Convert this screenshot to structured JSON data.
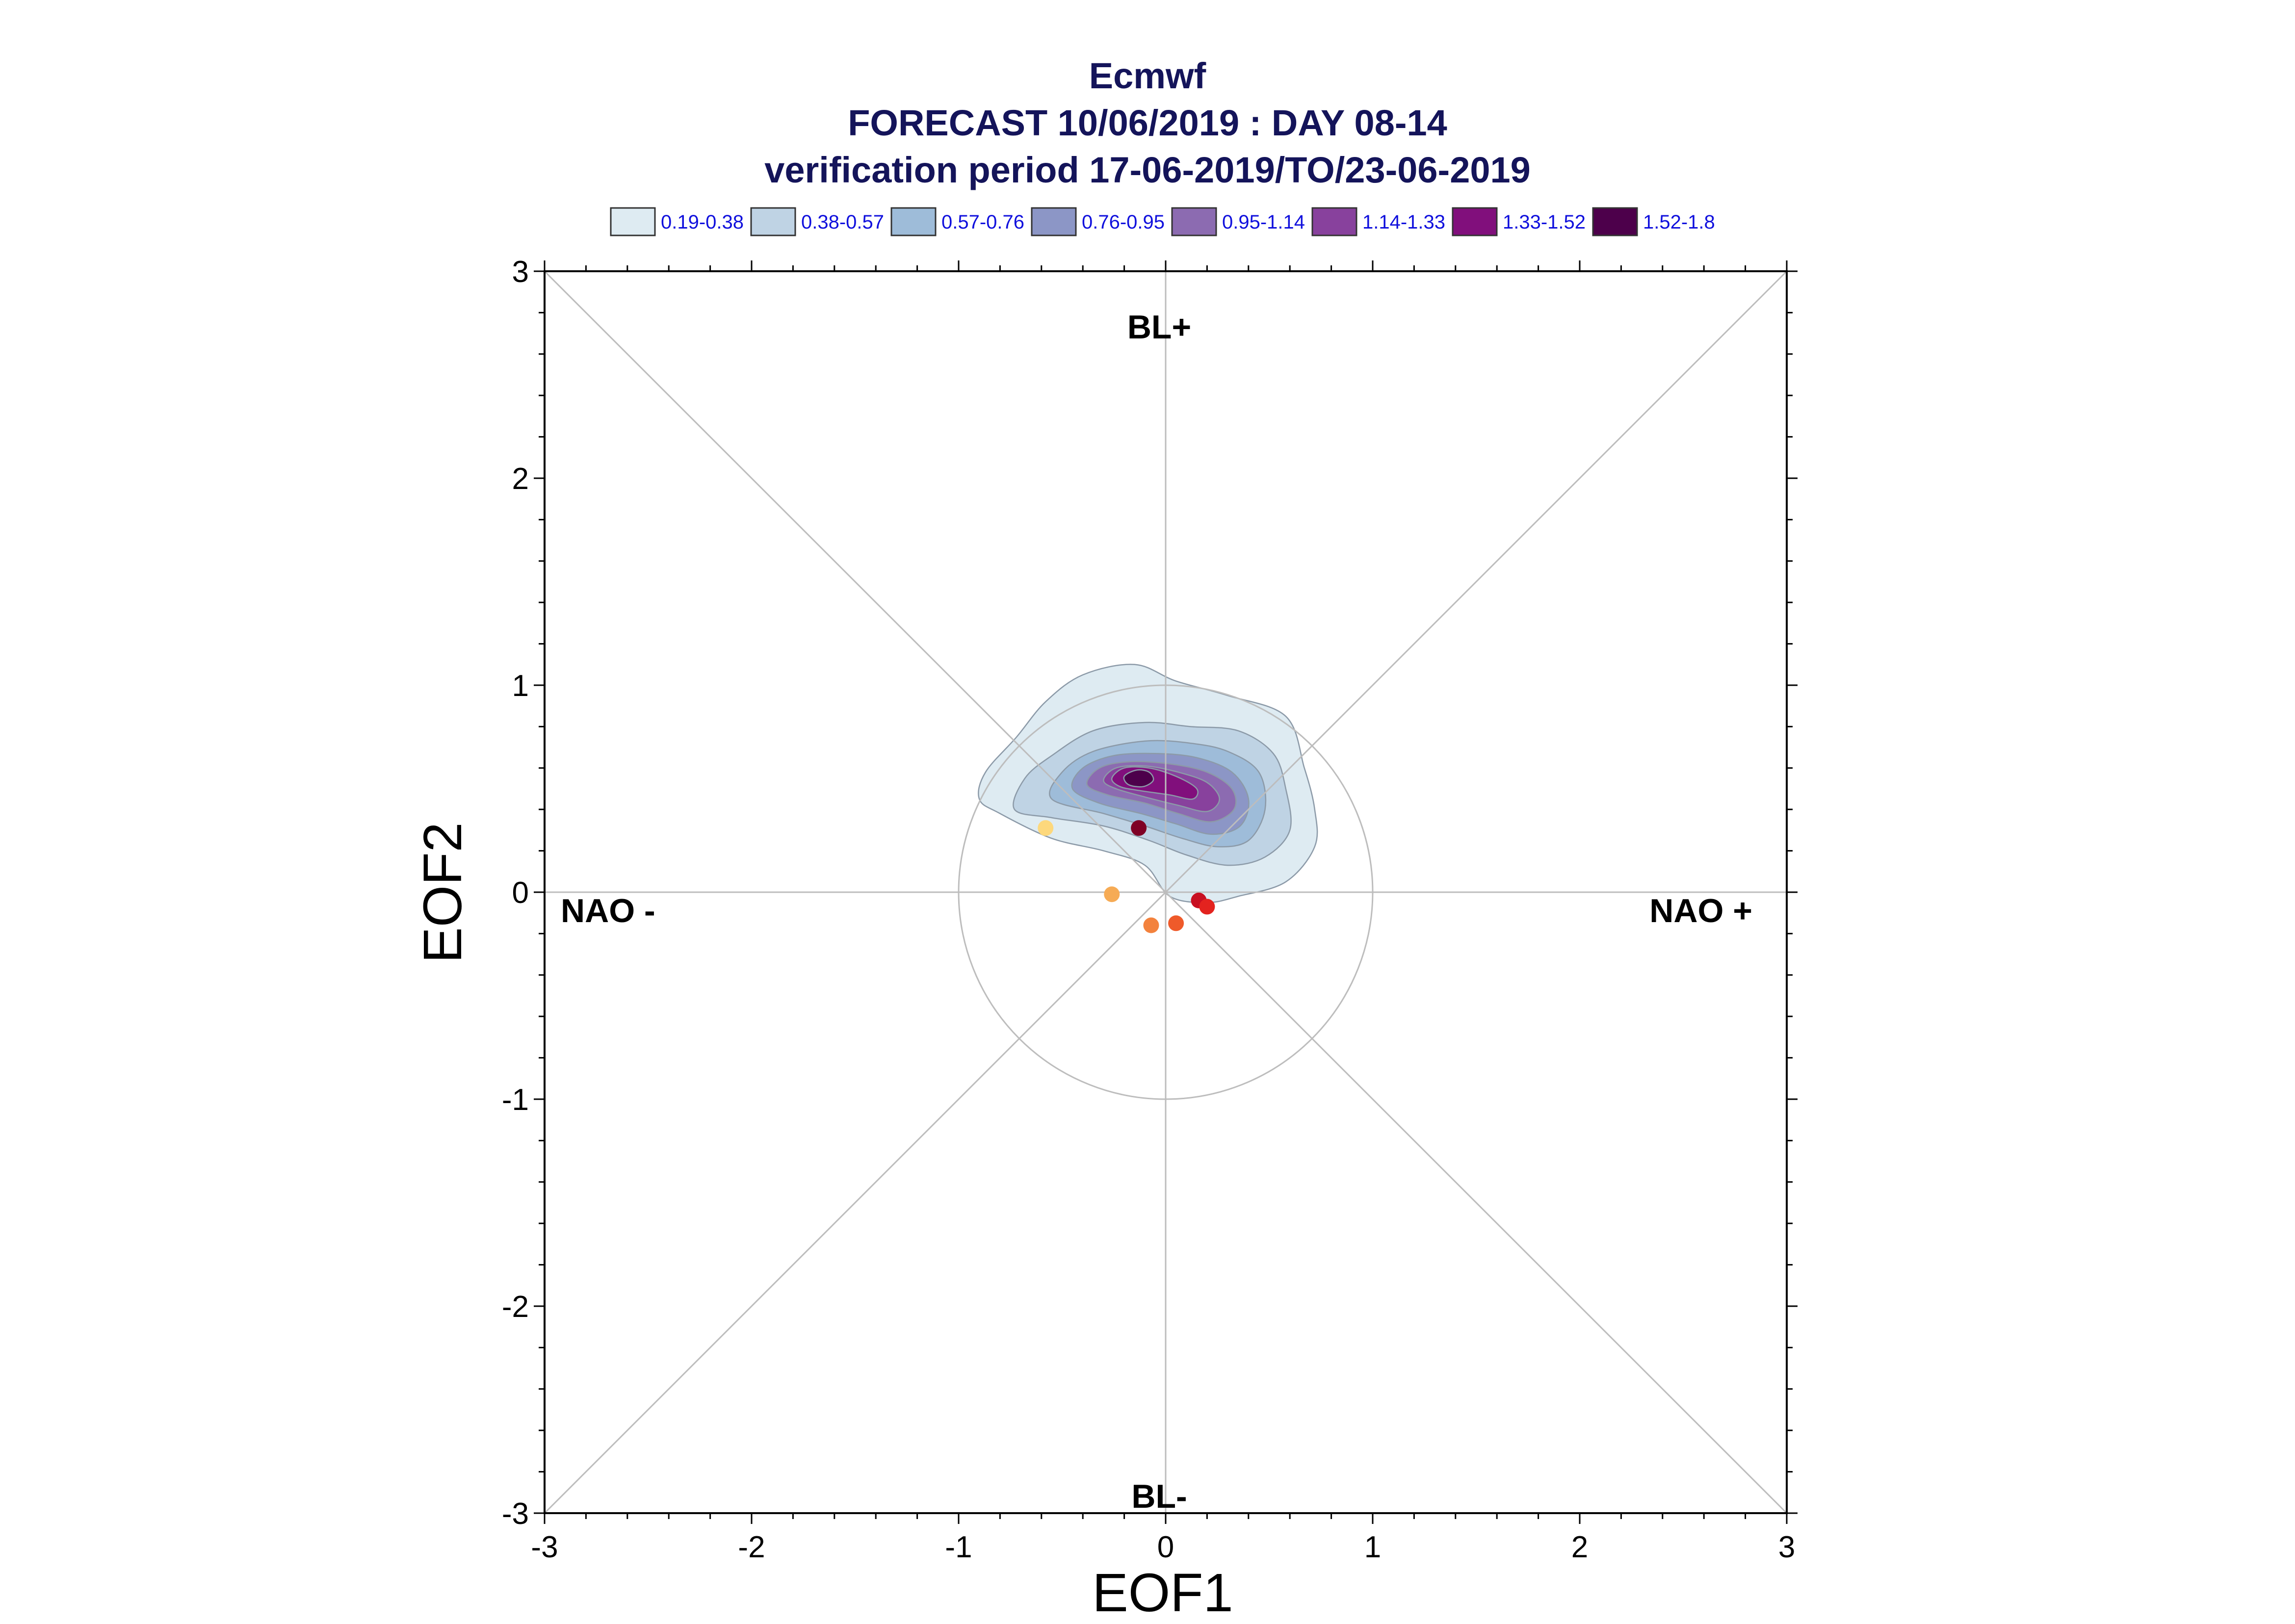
{
  "title_lines": [
    "Ecmwf",
    "FORECAST 10/06/2019 : DAY 08-14",
    "verification period 17-06-2019/TO/23-06-2019"
  ],
  "chart_data": {
    "type": "scatter",
    "title": "Ecmwf FORECAST 10/06/2019 : DAY 08-14 verification period 17-06-2019/TO/23-06-2019",
    "xlabel": "EOF1",
    "ylabel": "EOF2",
    "xlim": [
      -3,
      3
    ],
    "ylim": [
      -3,
      3
    ],
    "x_ticks": [
      "-3",
      "-2",
      "-1",
      "0",
      "1",
      "2",
      "3"
    ],
    "y_ticks": [
      "-3",
      "-2",
      "-1",
      "0",
      "1",
      "2",
      "3"
    ],
    "grid": false,
    "reference_circle_radius": 1,
    "diagonal_lines": true,
    "region_labels": {
      "top": "BL+",
      "bottom": "BL-",
      "left": "NAO -",
      "right": "NAO +"
    },
    "legend": {
      "placement": "top",
      "entries": [
        {
          "label": "0.19-0.38",
          "color": "#deebf2"
        },
        {
          "label": "0.38-0.57",
          "color": "#bfd3e4"
        },
        {
          "label": "0.57-0.76",
          "color": "#9ebcd9"
        },
        {
          "label": "0.76-0.95",
          "color": "#8c96c6"
        },
        {
          "label": "0.95-1.14",
          "color": "#8c6bb1"
        },
        {
          "label": "1.14-1.33",
          "color": "#88419d"
        },
        {
          "label": "1.33-1.52",
          "color": "#810f7c"
        },
        {
          "label": "1.52-1.8",
          "color": "#4d004b"
        }
      ]
    },
    "density_contours": [
      {
        "level": "0.19-0.38",
        "color": "#deebf2",
        "points": [
          [
            -0.8,
            0.38
          ],
          [
            -0.9,
            0.45
          ],
          [
            -0.87,
            0.58
          ],
          [
            -0.72,
            0.75
          ],
          [
            -0.58,
            0.92
          ],
          [
            -0.4,
            1.05
          ],
          [
            -0.15,
            1.1
          ],
          [
            0.05,
            1.02
          ],
          [
            0.3,
            0.95
          ],
          [
            0.58,
            0.85
          ],
          [
            0.67,
            0.6
          ],
          [
            0.72,
            0.4
          ],
          [
            0.72,
            0.22
          ],
          [
            0.58,
            0.05
          ],
          [
            0.35,
            -0.02
          ],
          [
            0.2,
            -0.05
          ],
          [
            0.02,
            -0.02
          ],
          [
            -0.1,
            0.13
          ],
          [
            -0.3,
            0.2
          ],
          [
            -0.55,
            0.26
          ]
        ]
      },
      {
        "level": "0.38-0.57",
        "color": "#bfd3e4",
        "points": [
          [
            -0.73,
            0.4
          ],
          [
            -0.68,
            0.55
          ],
          [
            -0.55,
            0.66
          ],
          [
            -0.35,
            0.78
          ],
          [
            -0.1,
            0.82
          ],
          [
            0.12,
            0.8
          ],
          [
            0.35,
            0.78
          ],
          [
            0.52,
            0.67
          ],
          [
            0.58,
            0.5
          ],
          [
            0.6,
            0.3
          ],
          [
            0.48,
            0.17
          ],
          [
            0.3,
            0.13
          ],
          [
            0.1,
            0.18
          ],
          [
            -0.08,
            0.25
          ],
          [
            -0.3,
            0.32
          ],
          [
            -0.55,
            0.36
          ]
        ]
      },
      {
        "level": "0.57-0.76",
        "color": "#9ebcd9",
        "points": [
          [
            -0.55,
            0.45
          ],
          [
            -0.5,
            0.58
          ],
          [
            -0.35,
            0.68
          ],
          [
            -0.1,
            0.73
          ],
          [
            0.12,
            0.72
          ],
          [
            0.3,
            0.68
          ],
          [
            0.45,
            0.58
          ],
          [
            0.48,
            0.4
          ],
          [
            0.4,
            0.25
          ],
          [
            0.25,
            0.22
          ],
          [
            0.08,
            0.26
          ],
          [
            -0.1,
            0.32
          ],
          [
            -0.3,
            0.38
          ]
        ]
      },
      {
        "level": "0.76-0.95",
        "color": "#8c96c6",
        "points": [
          [
            -0.45,
            0.5
          ],
          [
            -0.4,
            0.6
          ],
          [
            -0.25,
            0.66
          ],
          [
            -0.05,
            0.67
          ],
          [
            0.15,
            0.65
          ],
          [
            0.32,
            0.58
          ],
          [
            0.4,
            0.45
          ],
          [
            0.36,
            0.32
          ],
          [
            0.22,
            0.28
          ],
          [
            0.05,
            0.33
          ],
          [
            -0.12,
            0.38
          ],
          [
            -0.32,
            0.43
          ]
        ]
      },
      {
        "level": "0.95-1.14",
        "color": "#8c6bb1",
        "points": [
          [
            -0.38,
            0.52
          ],
          [
            -0.32,
            0.6
          ],
          [
            -0.18,
            0.63
          ],
          [
            0.02,
            0.62
          ],
          [
            0.2,
            0.58
          ],
          [
            0.32,
            0.5
          ],
          [
            0.33,
            0.4
          ],
          [
            0.22,
            0.34
          ],
          [
            0.06,
            0.38
          ],
          [
            -0.1,
            0.43
          ],
          [
            -0.28,
            0.47
          ]
        ]
      },
      {
        "level": "1.14-1.33",
        "color": "#88419d",
        "points": [
          [
            -0.3,
            0.54
          ],
          [
            -0.24,
            0.6
          ],
          [
            -0.1,
            0.61
          ],
          [
            0.06,
            0.58
          ],
          [
            0.2,
            0.53
          ],
          [
            0.26,
            0.45
          ],
          [
            0.2,
            0.39
          ],
          [
            0.06,
            0.42
          ],
          [
            -0.1,
            0.46
          ],
          [
            -0.24,
            0.5
          ]
        ]
      },
      {
        "level": "1.33-1.52",
        "color": "#810f7c",
        "points": [
          [
            -0.26,
            0.55
          ],
          [
            -0.2,
            0.6
          ],
          [
            -0.08,
            0.6
          ],
          [
            0.05,
            0.56
          ],
          [
            0.15,
            0.5
          ],
          [
            0.13,
            0.45
          ],
          [
            0.02,
            0.47
          ],
          [
            -0.12,
            0.49
          ],
          [
            -0.22,
            0.51
          ]
        ]
      },
      {
        "level": "1.52-1.8",
        "color": "#4d004b",
        "points": [
          [
            -0.2,
            0.56
          ],
          [
            -0.14,
            0.59
          ],
          [
            -0.08,
            0.58
          ],
          [
            -0.06,
            0.54
          ],
          [
            -0.11,
            0.51
          ],
          [
            -0.18,
            0.52
          ]
        ]
      }
    ],
    "points": [
      {
        "x": -0.58,
        "y": 0.31,
        "color": "#fdd87c"
      },
      {
        "x": -0.13,
        "y": 0.31,
        "color": "#7f0025"
      },
      {
        "x": -0.26,
        "y": -0.01,
        "color": "#f6ab55"
      },
      {
        "x": -0.07,
        "y": -0.16,
        "color": "#f3823d"
      },
      {
        "x": 0.05,
        "y": -0.15,
        "color": "#ef5a2a"
      },
      {
        "x": 0.16,
        "y": -0.04,
        "color": "#c80f21"
      },
      {
        "x": 0.2,
        "y": -0.07,
        "color": "#e3231f"
      }
    ]
  }
}
